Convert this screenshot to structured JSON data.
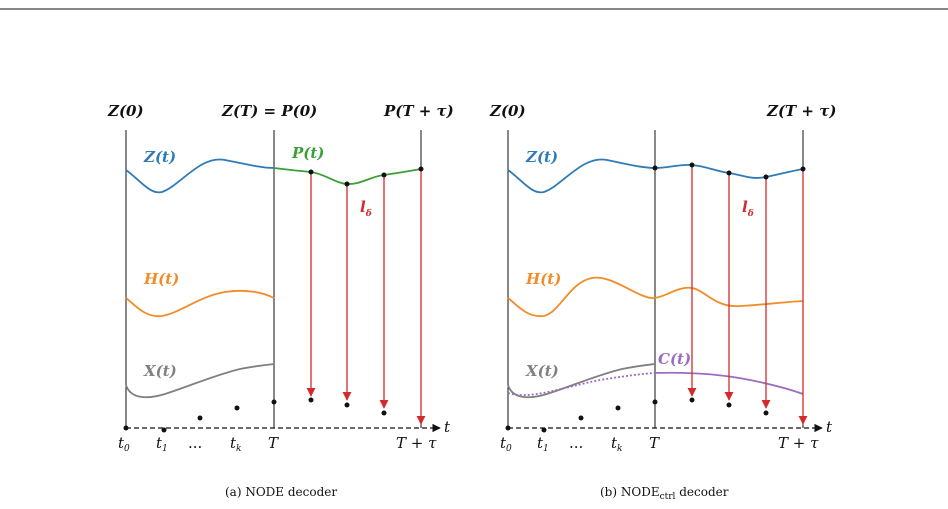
{
  "colors": {
    "z": "#2f7bb6",
    "h": "#f28c28",
    "x": "#808080",
    "p": "#3aa035",
    "c": "#9b6cc0",
    "arrow": "#d22b2b",
    "line": "#111111"
  },
  "panel_a": {
    "top_labels": [
      "Z(0)",
      "Z(T) = P(0)",
      "P(T + τ)"
    ],
    "curve_labels": {
      "z": "Z(t)",
      "p": "P(t)",
      "h": "H(t)",
      "x": "X(t)"
    },
    "loss_label": "l",
    "loss_sub": "δ",
    "axis_t": "t",
    "time_labels": [
      "t",
      "t",
      "...",
      "t",
      "T",
      "T + τ"
    ],
    "time_subs": [
      "0",
      "1",
      "",
      "k",
      "",
      ""
    ],
    "caption": "(a) NODE decoder"
  },
  "panel_b": {
    "top_labels": [
      "Z(0)",
      "Z(T + τ)"
    ],
    "curve_labels": {
      "z": "Z(t)",
      "h": "H(t)",
      "x": "X(t)",
      "c": "C(t)"
    },
    "loss_label": "l",
    "loss_sub": "δ",
    "axis_t": "t",
    "time_labels": [
      "t",
      "t",
      "...",
      "t",
      "T",
      "T + τ"
    ],
    "time_subs": [
      "0",
      "1",
      "",
      "k",
      "",
      ""
    ],
    "caption_main": "(b) NODE",
    "caption_sub": "ctrl",
    "caption_tail": " decoder"
  }
}
